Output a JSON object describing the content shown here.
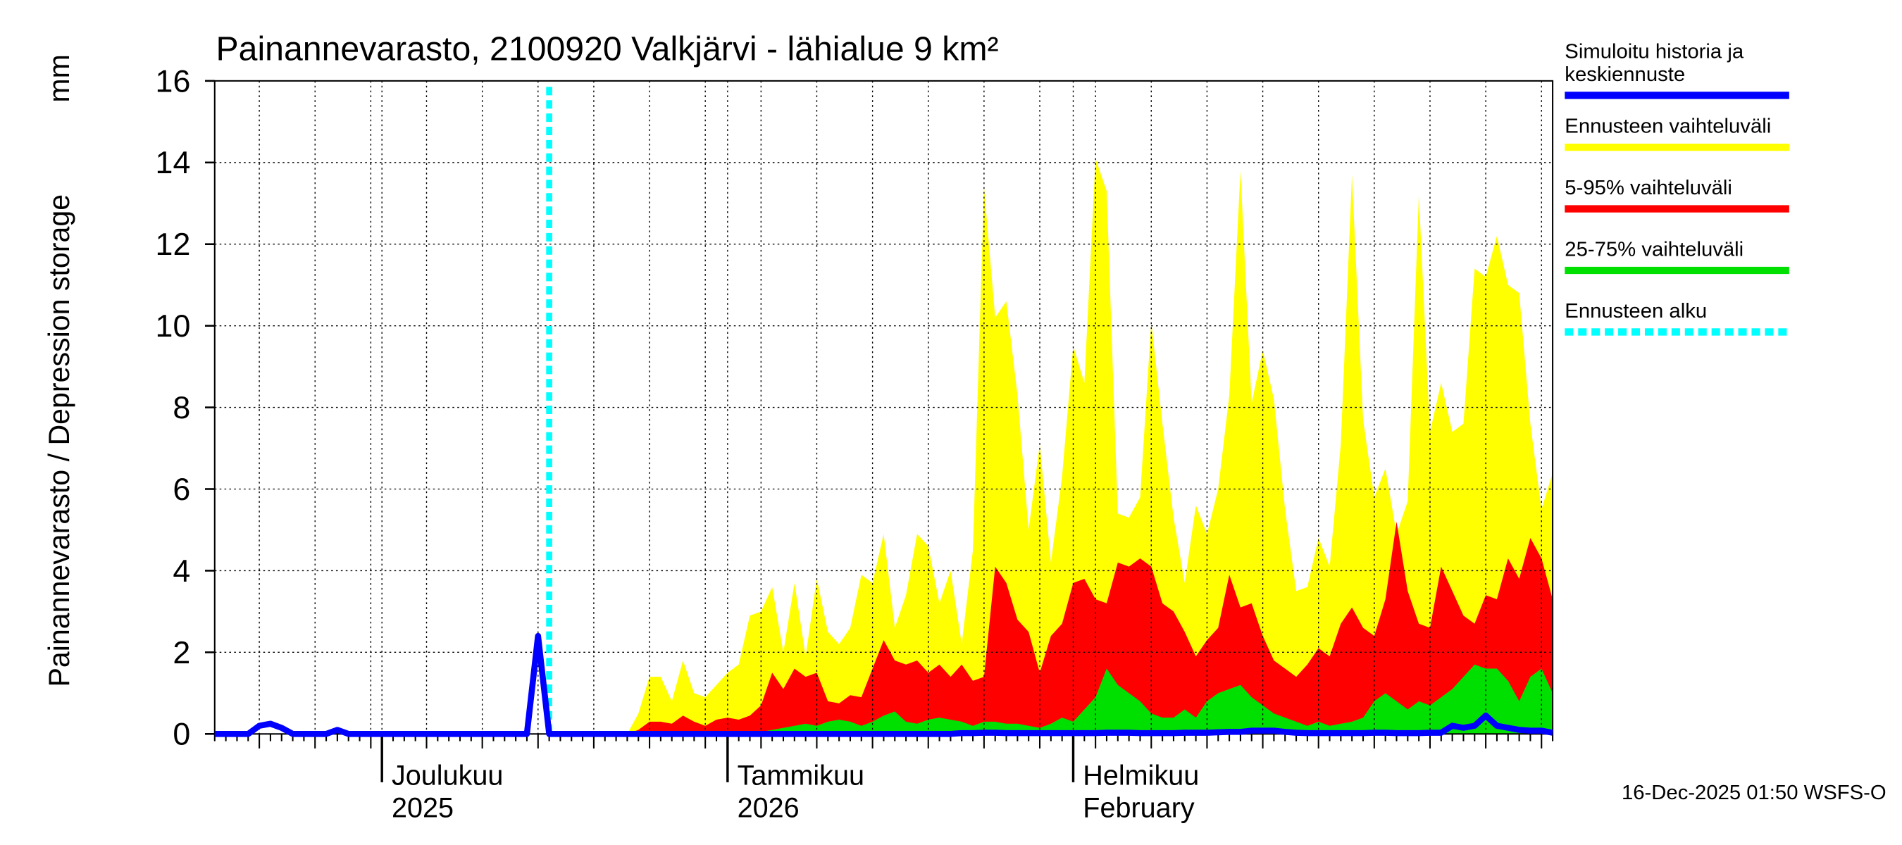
{
  "chart_data": {
    "type": "band",
    "title": "Painannevarasto, 2100920 Valkjärvi - lähialue 9 km²",
    "ylabel": "Painannevarasto / Depression storage",
    "yunit": "mm",
    "footer": "16-Dec-2025 01:50 WSFS-O",
    "categories": [
      null,
      null,
      null,
      null,
      null,
      null,
      null,
      null,
      null,
      null,
      null,
      null,
      null,
      null,
      null,
      [
        "Joulukuu",
        "2025"
      ],
      null,
      null,
      null,
      null,
      null,
      null,
      null,
      null,
      null,
      null,
      null,
      null,
      null,
      null,
      null,
      null,
      null,
      null,
      null,
      null,
      null,
      null,
      null,
      null,
      null,
      null,
      null,
      null,
      null,
      null,
      [
        "Tammikuu",
        "2026"
      ],
      null,
      null,
      null,
      null,
      null,
      null,
      null,
      null,
      null,
      null,
      null,
      null,
      null,
      null,
      null,
      null,
      null,
      null,
      null,
      null,
      null,
      null,
      null,
      null,
      null,
      null,
      null,
      null,
      null,
      null,
      [
        "Helmikuu",
        "February"
      ],
      null,
      null,
      null,
      null,
      null,
      null,
      null,
      null,
      null,
      null,
      null,
      null,
      null,
      null,
      null,
      null,
      null,
      null,
      null,
      null,
      null,
      null,
      null,
      null,
      null,
      null,
      null,
      null,
      null,
      null,
      null,
      null,
      null,
      null,
      null,
      null,
      null,
      null,
      null,
      null,
      null,
      null,
      null
    ],
    "series": [
      {
        "name": "Simuloitu historia ja\nkeskiennuste",
        "color": "#0000ff",
        "style": "line",
        "values": [
          0,
          0,
          0,
          0,
          0.2,
          0.25,
          0.15,
          0,
          0,
          0,
          0,
          0.1,
          0,
          0,
          0,
          0,
          0,
          0,
          0,
          0,
          0,
          0,
          0,
          0,
          0,
          0,
          0,
          0,
          0,
          2.4,
          0,
          0,
          0,
          0,
          0,
          0,
          0,
          0,
          0,
          0,
          0,
          0,
          0,
          0,
          0,
          0,
          0,
          0,
          0,
          0,
          0,
          0,
          0,
          0,
          0,
          0,
          0,
          0,
          0,
          0,
          0,
          0,
          0,
          0,
          0,
          0,
          0,
          0.02,
          0.02,
          0.03,
          0.03,
          0.02,
          0.02,
          0.02,
          0.02,
          0.02,
          0.02,
          0.02,
          0.02,
          0.02,
          0.03,
          0.03,
          0.03,
          0.02,
          0.02,
          0.02,
          0.02,
          0.03,
          0.03,
          0.03,
          0.04,
          0.05,
          0.05,
          0.08,
          0.08,
          0.08,
          0.05,
          0.03,
          0.02,
          0.02,
          0.02,
          0.02,
          0.02,
          0.02,
          0.03,
          0.03,
          0.02,
          0.02,
          0.02,
          0.03,
          0.03,
          0.2,
          0.15,
          0.2,
          0.45,
          0.2,
          0.15,
          0.1,
          0.08,
          0.08,
          0.03
        ]
      },
      {
        "name": "Ennusteen vaihteluväli",
        "color": "#ffff00",
        "style": "area",
        "values": [
          null,
          null,
          null,
          null,
          null,
          null,
          null,
          null,
          null,
          null,
          null,
          null,
          null,
          null,
          null,
          null,
          null,
          null,
          null,
          null,
          null,
          null,
          null,
          null,
          null,
          null,
          null,
          null,
          null,
          null,
          null,
          null,
          null,
          null,
          null,
          null,
          null,
          0,
          0.5,
          1.4,
          1.4,
          0.8,
          1.8,
          1.0,
          0.9,
          1.2,
          1.5,
          1.7,
          2.9,
          3.0,
          3.6,
          2.0,
          3.7,
          1.9,
          3.8,
          2.5,
          2.2,
          2.6,
          3.9,
          3.7,
          4.9,
          2.6,
          3.4,
          4.9,
          4.6,
          3.2,
          4.0,
          2.2,
          4.5,
          13.4,
          10.2,
          10.6,
          8.3,
          5.0,
          7.1,
          4.2,
          6.3,
          9.5,
          8.6,
          14.1,
          13.3,
          5.4,
          5.3,
          5.8,
          10.1,
          7.6,
          5.3,
          3.7,
          5.6,
          4.9,
          6.0,
          8.3,
          13.8,
          8.1,
          9.4,
          8.2,
          5.5,
          3.5,
          3.6,
          4.8,
          4.1,
          7.1,
          13.7,
          7.7,
          5.8,
          6.5,
          4.9,
          5.7,
          13.2,
          7.4,
          8.6,
          7.4,
          7.6,
          11.4,
          11.2,
          12.2,
          11.0,
          10.8,
          7.6,
          5.5,
          6.4
        ]
      },
      {
        "name": "5-95% vaihteluväli",
        "color": "#ff0000",
        "style": "area",
        "values": [
          null,
          null,
          null,
          null,
          null,
          null,
          null,
          null,
          null,
          null,
          null,
          null,
          null,
          null,
          null,
          null,
          null,
          null,
          null,
          null,
          null,
          null,
          null,
          null,
          null,
          null,
          null,
          null,
          null,
          null,
          null,
          null,
          null,
          null,
          null,
          null,
          null,
          0,
          0.1,
          0.3,
          0.3,
          0.25,
          0.45,
          0.3,
          0.2,
          0.35,
          0.4,
          0.35,
          0.45,
          0.7,
          1.5,
          1.1,
          1.6,
          1.4,
          1.5,
          0.8,
          0.75,
          0.95,
          0.9,
          1.6,
          2.3,
          1.8,
          1.7,
          1.8,
          1.5,
          1.7,
          1.4,
          1.7,
          1.3,
          1.4,
          4.1,
          3.7,
          2.8,
          2.5,
          1.5,
          2.4,
          2.7,
          3.7,
          3.8,
          3.3,
          3.2,
          4.2,
          4.1,
          4.3,
          4.1,
          3.2,
          3.0,
          2.5,
          1.9,
          2.3,
          2.6,
          3.9,
          3.1,
          3.2,
          2.4,
          1.8,
          1.6,
          1.4,
          1.7,
          2.1,
          1.9,
          2.7,
          3.1,
          2.6,
          2.4,
          3.3,
          5.2,
          3.5,
          2.7,
          2.6,
          4.1,
          3.5,
          2.9,
          2.7,
          3.4,
          3.3,
          4.3,
          3.8,
          4.8,
          4.3,
          3.3
        ]
      },
      {
        "name": "25-75% vaihteluväli",
        "color": "#00e000",
        "style": "area",
        "values": [
          null,
          null,
          null,
          null,
          null,
          null,
          null,
          null,
          null,
          null,
          null,
          null,
          null,
          null,
          null,
          null,
          null,
          null,
          null,
          null,
          null,
          null,
          null,
          null,
          null,
          null,
          null,
          null,
          null,
          null,
          null,
          null,
          null,
          null,
          null,
          null,
          null,
          null,
          null,
          null,
          null,
          null,
          null,
          null,
          null,
          null,
          null,
          0,
          0.05,
          0.05,
          0.1,
          0.15,
          0.2,
          0.25,
          0.2,
          0.3,
          0.35,
          0.3,
          0.2,
          0.3,
          0.45,
          0.55,
          0.3,
          0.25,
          0.35,
          0.4,
          0.35,
          0.3,
          0.2,
          0.3,
          0.3,
          0.25,
          0.25,
          0.2,
          0.15,
          0.25,
          0.4,
          0.3,
          0.6,
          0.9,
          1.6,
          1.2,
          1.0,
          0.8,
          0.5,
          0.4,
          0.4,
          0.6,
          0.4,
          0.8,
          1.0,
          1.1,
          1.2,
          0.9,
          0.7,
          0.5,
          0.4,
          0.3,
          0.2,
          0.3,
          0.2,
          0.25,
          0.3,
          0.4,
          0.8,
          1.0,
          0.8,
          0.6,
          0.8,
          0.7,
          0.9,
          1.1,
          1.4,
          1.7,
          1.6,
          1.6,
          1.3,
          0.8,
          1.4,
          1.6,
          1.0
        ]
      }
    ],
    "forecast_start": {
      "name": "Ennusteen alku",
      "color": "#00ffff",
      "at": 30
    },
    "legend_order": [
      0,
      1,
      2,
      3
    ],
    "ylim": [
      0,
      16
    ],
    "yticks": [
      0,
      2,
      4,
      6,
      8,
      10,
      12,
      14,
      16
    ],
    "grid": true
  }
}
